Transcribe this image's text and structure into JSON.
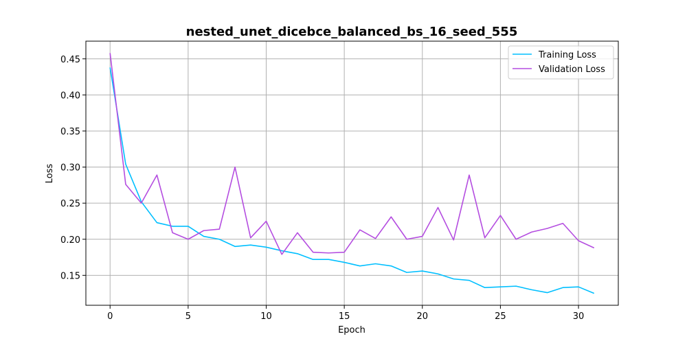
{
  "chart_data": {
    "type": "line",
    "title": "nested_unet_dicebce_balanced_bs_16_seed_555",
    "xlabel": "Epoch",
    "ylabel": "Loss",
    "xlim": [
      -1.55,
      32.55
    ],
    "ylim": [
      0.1085,
      0.4745
    ],
    "xticks": [
      0,
      5,
      10,
      15,
      20,
      25,
      30
    ],
    "yticks": [
      0.15,
      0.2,
      0.25,
      0.3,
      0.35,
      0.4,
      0.45
    ],
    "grid": true,
    "legend_position": "upper-right",
    "x": [
      0,
      1,
      2,
      3,
      4,
      5,
      6,
      7,
      8,
      9,
      10,
      11,
      12,
      13,
      14,
      15,
      16,
      17,
      18,
      19,
      20,
      21,
      22,
      23,
      24,
      25,
      26,
      27,
      28,
      29,
      30,
      31
    ],
    "series": [
      {
        "name": "Training Loss",
        "color": "#00bfff",
        "values": [
          0.438,
          0.304,
          0.252,
          0.223,
          0.218,
          0.218,
          0.204,
          0.2,
          0.19,
          0.192,
          0.189,
          0.184,
          0.18,
          0.172,
          0.172,
          0.168,
          0.163,
          0.166,
          0.163,
          0.154,
          0.156,
          0.152,
          0.145,
          0.143,
          0.133,
          0.134,
          0.135,
          0.13,
          0.126,
          0.133,
          0.134,
          0.125
        ]
      },
      {
        "name": "Validation Loss",
        "color": "#b44de0",
        "values": [
          0.458,
          0.276,
          0.25,
          0.289,
          0.209,
          0.2,
          0.212,
          0.214,
          0.3,
          0.202,
          0.225,
          0.179,
          0.209,
          0.182,
          0.181,
          0.182,
          0.213,
          0.201,
          0.231,
          0.2,
          0.204,
          0.244,
          0.199,
          0.289,
          0.202,
          0.233,
          0.2,
          0.21,
          0.215,
          0.222,
          0.198,
          0.188
        ]
      }
    ]
  }
}
